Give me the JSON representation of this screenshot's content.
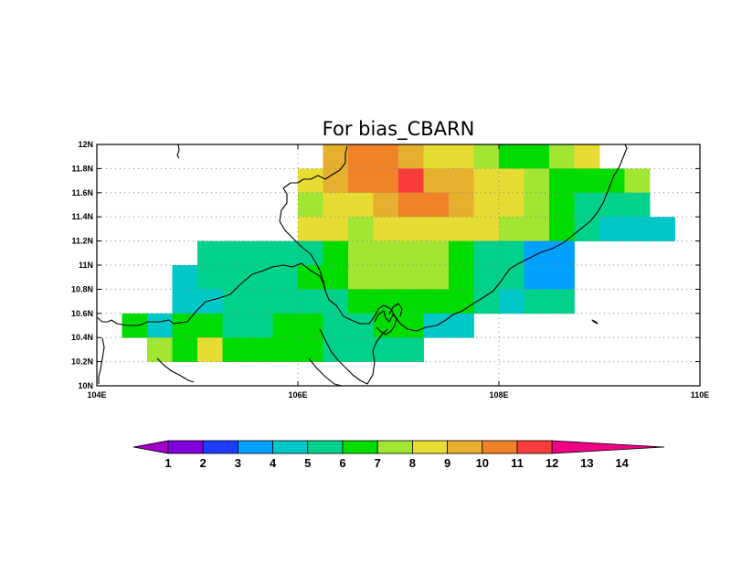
{
  "title": "For bias_CBARN",
  "chart_data": {
    "type": "heatmap",
    "title": "For bias_CBARN",
    "x_range": [
      104,
      110
    ],
    "y_range": [
      10,
      12
    ],
    "x_ticks": [
      "104E",
      "106E",
      "108E",
      "110E"
    ],
    "y_ticks": [
      "10N",
      "10.2N",
      "10.4N",
      "10.6N",
      "10.8N",
      "11N",
      "11.2N",
      "11.4N",
      "11.6N",
      "11.8N",
      "12N"
    ],
    "grid": true,
    "cell_size_deg": [
      0.25,
      0.2
    ],
    "cell_origin": [
      104.25,
      10.0
    ],
    "colorbar": {
      "labels": [
        "1",
        "2",
        "3",
        "4",
        "5",
        "6",
        "7",
        "8",
        "9",
        "10",
        "11",
        "12",
        "13",
        "14"
      ],
      "colors": [
        "#a000c8",
        "#8200dc",
        "#1e3cff",
        "#00a0ff",
        "#00c8c8",
        "#00d28c",
        "#00dc00",
        "#a0e632",
        "#e6dc32",
        "#e6af2d",
        "#f08228",
        "#fa3c3c",
        "#f00082"
      ],
      "extend": "both"
    },
    "rows": [
      {
        "lat": 11.8,
        "start_lon": 106.25,
        "values": [
          10.5,
          11.5,
          11.5,
          10.5,
          9.5,
          9.5,
          8.5,
          7.5,
          7.5,
          8.5,
          9.5
        ]
      },
      {
        "lat": 11.6,
        "start_lon": 106.0,
        "values": [
          9.5,
          10.5,
          11.5,
          11.5,
          12.5,
          10.5,
          10.5,
          9.5,
          9.5,
          8.5,
          7.5,
          7.5,
          7.5,
          8.5
        ]
      },
      {
        "lat": 11.4,
        "start_lon": 106.0,
        "values": [
          8.5,
          9.5,
          9.5,
          10.5,
          11.5,
          11.5,
          10.5,
          9.5,
          9.5,
          8.5,
          7.5,
          6.5,
          6.5,
          6.5
        ]
      },
      {
        "lat": 11.2,
        "start_lon": 106.0,
        "values": [
          9.5,
          9.5,
          8.5,
          9.5,
          9.5,
          9.5,
          9.5,
          9.5,
          8.5,
          8.5,
          7.5,
          6.5,
          5.5,
          5.5,
          5.5
        ]
      },
      {
        "lat": 11.0,
        "start_lon": 105.0,
        "values": [
          6.5,
          6.5,
          6.5,
          6.5,
          6.5,
          7.5,
          8.5,
          8.5,
          8.5,
          8.5,
          7.5,
          6.5,
          6.5,
          4.5,
          4.5
        ]
      },
      {
        "lat": 10.8,
        "start_lon": 104.75,
        "values": [
          5.5,
          6.5,
          6.5,
          6.5,
          6.5,
          7.5,
          7.5,
          8.5,
          8.5,
          8.5,
          8.5,
          7.5,
          6.5,
          6.5,
          4.5,
          4.5
        ]
      },
      {
        "lat": 10.6,
        "start_lon": 104.75,
        "values": [
          5.5,
          5.5,
          6.5,
          6.5,
          6.5,
          6.5,
          6.5,
          7.5,
          7.5,
          7.5,
          7.5,
          7.5,
          6.5,
          5.5,
          6.5,
          6.5
        ]
      },
      {
        "lat": 10.4,
        "start_lon": 104.25,
        "values": [
          7.5,
          5.5,
          7.5,
          7.5,
          6.5,
          6.5,
          7.5,
          7.5,
          6.5,
          6.5,
          7.5,
          7.5,
          5.5,
          5.5
        ]
      },
      {
        "lat": 10.2,
        "start_lon": 104.5,
        "values": [
          8.5,
          7.5,
          9.5,
          7.5,
          7.5,
          7.5,
          7.5,
          6.5,
          6.5,
          6.5,
          6.5
        ]
      }
    ]
  }
}
